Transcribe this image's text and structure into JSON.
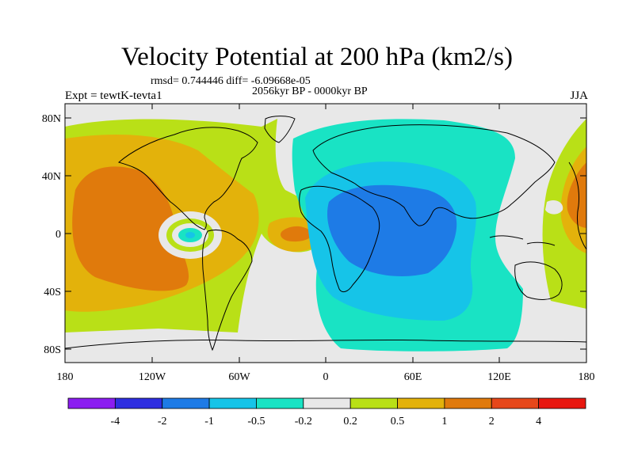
{
  "title": "Velocity Potential at 200 hPa (km2/s)",
  "stats": "rmsd= 0.744446 diff= -6.09668e-05",
  "period": "2056kyr BP - 0000kyr BP",
  "experiment": "Expt = tewtK-tevta1",
  "season": "JJA",
  "lat_labels": [
    "80N",
    "40N",
    "0",
    "40S",
    "80S"
  ],
  "lon_labels": [
    "180",
    "120W",
    "60W",
    "0",
    "60E",
    "120E",
    "180"
  ],
  "colorbar": {
    "labels": [
      "-4",
      "-2",
      "-1",
      "-0.5",
      "-0.2",
      "0.2",
      "0.5",
      "1",
      "2",
      "4"
    ],
    "colors": [
      "#8b1df0",
      "#2e2ee0",
      "#1e7be6",
      "#16c4e8",
      "#19e3c4",
      "#e8e8e8",
      "#b9e017",
      "#e3b20b",
      "#e07a0c",
      "#e6471a",
      "#e8170f"
    ]
  },
  "palette": {
    "land_mask": "#e8e8e8",
    "pos1": "#b9e017",
    "pos2": "#e3b20b",
    "pos3": "#e07a0c",
    "pos4": "#e6471a",
    "neg1": "#19e3c4",
    "neg2": "#16c4e8",
    "neg3": "#1e7be6"
  }
}
